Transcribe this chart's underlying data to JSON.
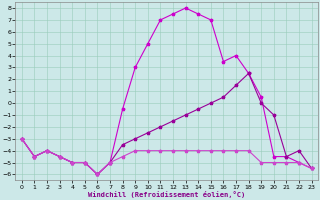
{
  "xlabel": "Windchill (Refroidissement éolien,°C)",
  "bg_color": "#cce8e8",
  "grid_color": "#99ccbb",
  "line_color1": "#cc00cc",
  "line_color2": "#990099",
  "line_color3": "#cc44cc",
  "xlim": [
    -0.5,
    23.5
  ],
  "ylim": [
    -6.5,
    8.5
  ],
  "yticks": [
    8,
    7,
    6,
    5,
    4,
    3,
    2,
    1,
    0,
    -1,
    -2,
    -3,
    -4,
    -5,
    -6
  ],
  "xticks": [
    0,
    1,
    2,
    3,
    4,
    5,
    6,
    7,
    8,
    9,
    10,
    11,
    12,
    13,
    14,
    15,
    16,
    17,
    18,
    19,
    20,
    21,
    22,
    23
  ],
  "series1_x": [
    0,
    1,
    2,
    3,
    4,
    5,
    6,
    7,
    8,
    9,
    10,
    11,
    12,
    13,
    14,
    15,
    16,
    17,
    18,
    19,
    20,
    21,
    22,
    23
  ],
  "series1_y": [
    -3,
    -4.5,
    -4,
    -4.5,
    -5,
    -5,
    -6,
    -5,
    -0.5,
    3,
    5,
    7,
    7.5,
    8,
    7.5,
    7,
    3.5,
    4,
    2.5,
    0.5,
    -4.5,
    -4.5,
    -5,
    -5.5
  ],
  "series2_x": [
    0,
    1,
    2,
    3,
    4,
    5,
    6,
    7,
    8,
    9,
    10,
    11,
    12,
    13,
    14,
    15,
    16,
    17,
    18,
    19,
    20,
    21,
    22,
    23
  ],
  "series2_y": [
    -3,
    -4.5,
    -4,
    -4.5,
    -5,
    -5,
    -6,
    -5,
    -3.5,
    -3,
    -2.5,
    -2,
    -1.5,
    -1,
    -0.5,
    0,
    0.5,
    1.5,
    2.5,
    0,
    -1,
    -4.5,
    -4,
    -5.5
  ],
  "series3_x": [
    0,
    1,
    2,
    3,
    4,
    5,
    6,
    7,
    8,
    9,
    10,
    11,
    12,
    13,
    14,
    15,
    16,
    17,
    18,
    19,
    20,
    21,
    22,
    23
  ],
  "series3_y": [
    -3,
    -4.5,
    -4,
    -4.5,
    -5,
    -5,
    -6,
    -5,
    -4.5,
    -4,
    -4,
    -4,
    -4,
    -4,
    -4,
    -4,
    -4,
    -4,
    -4,
    -5,
    -5,
    -5,
    -5,
    -5.5
  ]
}
